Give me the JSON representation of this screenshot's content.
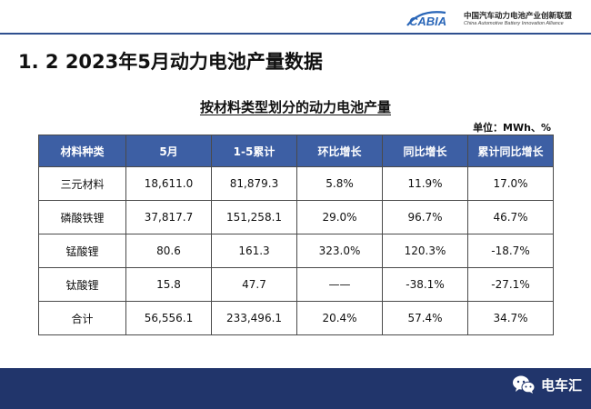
{
  "header": {
    "logo_mark": "CABIA",
    "logo_cn": "中国汽车动力电池产业创新联盟",
    "logo_en": "China Automotive Battery Innovation Alliance"
  },
  "slide_title": "1. 2  2023年5月动力电池产量数据",
  "table_title": "按材料类型划分的动力电池产量",
  "unit": "单位：MWh、%",
  "table": {
    "headers": [
      "材料种类",
      "5月",
      "1-5累计",
      "环比增长",
      "同比增长",
      "累计同比增长"
    ],
    "rows": [
      [
        "三元材料",
        "18,611.0",
        "81,879.3",
        "5.8%",
        "11.9%",
        "17.0%"
      ],
      [
        "磷酸铁锂",
        "37,817.7",
        "151,258.1",
        "29.0%",
        "96.7%",
        "46.7%"
      ],
      [
        "锰酸锂",
        "80.6",
        "161.3",
        "323.0%",
        "120.3%",
        "-18.7%"
      ],
      [
        "钛酸锂",
        "15.8",
        "47.7",
        "——",
        "-38.1%",
        "-27.1%"
      ],
      [
        "合计",
        "56,556.1",
        "233,496.1",
        "20.4%",
        "57.4%",
        "34.7%"
      ]
    ]
  },
  "watermark": {
    "icon": "wechat-icon",
    "text": "电车汇"
  },
  "colors": {
    "header_fill": "#3d5fa4",
    "footer_band": "#21356b",
    "rule": "#2f4f8f"
  }
}
